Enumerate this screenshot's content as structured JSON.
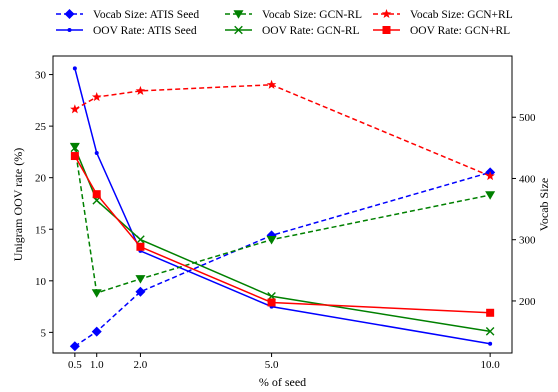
{
  "chart_data": {
    "type": "line",
    "x_values": [
      0.5,
      1.0,
      2.0,
      5.0,
      10.0
    ],
    "x_ticks": [
      "0.5",
      "1.0",
      "2.0",
      "5.0",
      "10.0"
    ],
    "xlabel": "% of seed",
    "ylabel_left": "Unigram OOV rate (%)",
    "ylabel_right": "Vocab Size",
    "xlim": [
      0.0,
      10.5
    ],
    "ylim_left": [
      3.0,
      31.8
    ],
    "ylim_right": [
      115,
      600
    ],
    "y_ticks_left": [
      5,
      10,
      15,
      20,
      25,
      30
    ],
    "y_ticks_right": [
      200,
      300,
      400,
      500
    ],
    "grid": false,
    "legend_placement": "top, outside plot area, 3 columns",
    "series": [
      {
        "name": "Vocab Size: ATIS Seed",
        "axis": "right",
        "color": "#0000ff",
        "linestyle": "dashed",
        "marker": "diamond",
        "values": [
          126,
          150,
          215,
          307,
          410
        ]
      },
      {
        "name": "OOV Rate: ATIS Seed",
        "axis": "left",
        "color": "#0000ff",
        "linestyle": "solid",
        "marker": "dot",
        "values": [
          30.6,
          22.4,
          12.9,
          7.5,
          3.9
        ]
      },
      {
        "name": "Vocab Size: GCN-RL",
        "axis": "right",
        "color": "#008000",
        "linestyle": "dashed",
        "marker": "triangle-down",
        "values": [
          452,
          213,
          236,
          300,
          373
        ]
      },
      {
        "name": "OOV Rate: GCN-RL",
        "axis": "left",
        "color": "#008000",
        "linestyle": "solid",
        "marker": "x",
        "values": [
          22.9,
          17.8,
          14.0,
          8.5,
          5.1
        ]
      },
      {
        "name": "Vocab Size: GCN+RL",
        "axis": "right",
        "color": "#ff0000",
        "linestyle": "dashed",
        "marker": "star",
        "values": [
          513,
          533,
          543,
          553,
          404
        ]
      },
      {
        "name": "OOV Rate: GCN+RL",
        "axis": "left",
        "color": "#ff0000",
        "linestyle": "solid",
        "marker": "square",
        "values": [
          22.1,
          18.4,
          13.3,
          7.9,
          6.9
        ]
      }
    ]
  }
}
